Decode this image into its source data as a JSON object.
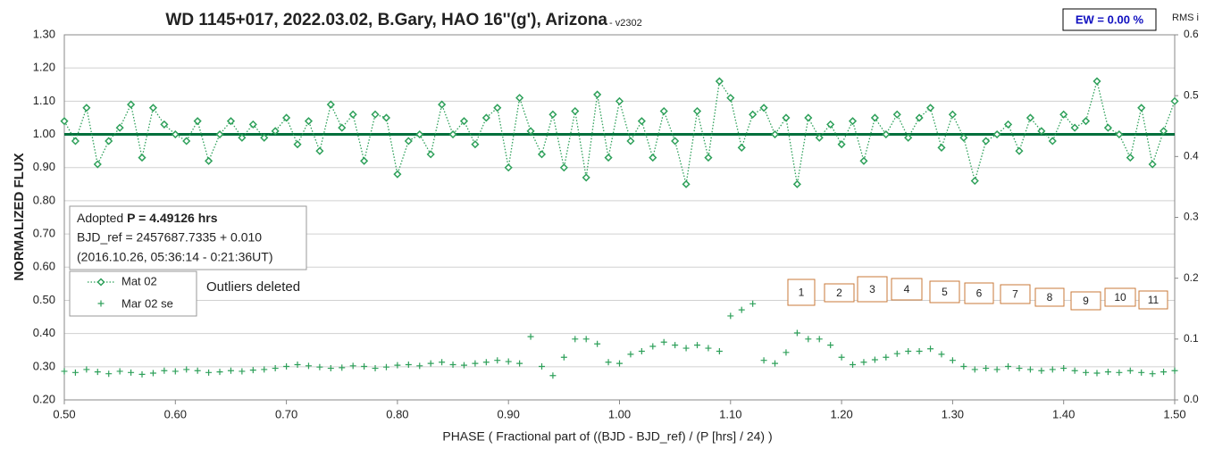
{
  "chart_data": {
    "type": "scatter",
    "title": "WD 1145+017, 2022.03.02, B.Gary, HAO 16''(g'), Arizona",
    "version": " - v2302",
    "ew_label": "EW = 0.00 %",
    "xlabel": "PHASE ( Fractional part of ((BJD - BJD_ref) / (P [hrs] / 24) )",
    "ylabel": "NORMALIZED FLUX",
    "y2label": "RMS i",
    "annotation": "Outliers deleted",
    "info_lines": [
      "Adopted",
      "P = 4.49126 hrs",
      "BJD_ref = 2457687.7335 + 0.010",
      "(2016.10.26, 05:36:14 - 0:21:36UT)"
    ],
    "markers": [
      "1",
      "2",
      "3",
      "4",
      "5",
      "6",
      "7",
      "8",
      "9",
      "10",
      "11"
    ],
    "reference_line": 1.0,
    "reference_color": "#00703c",
    "xlim": [
      0.5,
      1.5
    ],
    "xticks": [
      {
        "value": 0.5,
        "label": "0.50"
      },
      {
        "value": 0.6,
        "label": "0.60"
      },
      {
        "value": 0.7,
        "label": "0.70"
      },
      {
        "value": 0.8,
        "label": "0.80"
      },
      {
        "value": 0.9,
        "label": "0.90"
      },
      {
        "value": 1.0,
        "label": "1.00"
      },
      {
        "value": 1.1,
        "label": "1.10"
      },
      {
        "value": 1.2,
        "label": "1.20"
      },
      {
        "value": 1.3,
        "label": "1.30"
      },
      {
        "value": 1.4,
        "label": "1.40"
      },
      {
        "value": 1.5,
        "label": "1.50"
      }
    ],
    "ylim": [
      0.2,
      1.3
    ],
    "yticks": [
      {
        "value": 0.2,
        "label": "0.20"
      },
      {
        "value": 0.3,
        "label": "0.30"
      },
      {
        "value": 0.4,
        "label": "0.40"
      },
      {
        "value": 0.5,
        "label": "0.50"
      },
      {
        "value": 0.6,
        "label": "0.60"
      },
      {
        "value": 0.7,
        "label": "0.70"
      },
      {
        "value": 0.8,
        "label": "0.80"
      },
      {
        "value": 0.9,
        "label": "0.90"
      },
      {
        "value": 1.0,
        "label": "1.00"
      },
      {
        "value": 1.1,
        "label": "1.10"
      },
      {
        "value": 1.2,
        "label": "1.20"
      },
      {
        "value": 1.3,
        "label": "1.30"
      }
    ],
    "y2lim": [
      0,
      0.6
    ],
    "y2ticks": [
      {
        "value": 0,
        "label": "0.0"
      },
      {
        "value": 0.1,
        "label": "0.1"
      },
      {
        "value": 0.2,
        "label": "0.2"
      },
      {
        "value": 0.3,
        "label": "0.3"
      },
      {
        "value": 0.4,
        "label": "0.4"
      },
      {
        "value": 0.5,
        "label": "0.5"
      },
      {
        "value": 0.6,
        "label": "0.6"
      }
    ],
    "grid": true,
    "x": [
      0.5,
      0.51,
      0.52,
      0.53,
      0.54,
      0.55,
      0.56,
      0.57,
      0.58,
      0.59,
      0.6,
      0.61,
      0.62,
      0.63,
      0.64,
      0.65,
      0.66,
      0.67,
      0.68,
      0.69,
      0.7,
      0.71,
      0.72,
      0.73,
      0.74,
      0.75,
      0.76,
      0.77,
      0.78,
      0.79,
      0.8,
      0.81,
      0.82,
      0.83,
      0.84,
      0.85,
      0.86,
      0.87,
      0.88,
      0.89,
      0.9,
      0.91,
      0.92,
      0.93,
      0.94,
      0.95,
      0.96,
      0.97,
      0.98,
      0.99,
      1.0,
      1.01,
      1.02,
      1.03,
      1.04,
      1.05,
      1.06,
      1.07,
      1.08,
      1.09,
      1.1,
      1.11,
      1.12,
      1.13,
      1.14,
      1.15,
      1.16,
      1.17,
      1.18,
      1.19,
      1.2,
      1.21,
      1.22,
      1.23,
      1.24,
      1.25,
      1.26,
      1.27,
      1.28,
      1.29,
      1.3,
      1.31,
      1.32,
      1.33,
      1.34,
      1.35,
      1.36,
      1.37,
      1.38,
      1.39,
      1.4,
      1.41,
      1.42,
      1.43,
      1.44,
      1.45,
      1.46,
      1.47,
      1.48,
      1.49,
      1.5
    ],
    "series": [
      {
        "name": "Mat 02",
        "color": "#2ea05a",
        "values": [
          1.04,
          0.98,
          1.08,
          0.91,
          0.98,
          1.02,
          1.09,
          0.93,
          1.08,
          1.03,
          1.0,
          0.98,
          1.04,
          0.92,
          1.0,
          1.04,
          0.99,
          1.03,
          0.99,
          1.01,
          1.05,
          0.97,
          1.04,
          0.95,
          1.09,
          1.02,
          1.06,
          0.92,
          1.06,
          1.05,
          0.88,
          0.98,
          1.0,
          0.94,
          1.09,
          1.0,
          1.04,
          0.97,
          1.05,
          1.08,
          0.9,
          1.11,
          1.01,
          0.94,
          1.06,
          0.9,
          1.07,
          0.87,
          1.12,
          0.93,
          1.1,
          0.98,
          1.04,
          0.93,
          1.07,
          0.98,
          0.85,
          1.07,
          0.93,
          1.16,
          1.11,
          0.96,
          1.06,
          1.08,
          1.0,
          1.05,
          0.85,
          1.05,
          0.99,
          1.03,
          0.97,
          1.04,
          0.92,
          1.05,
          1.0,
          1.06,
          0.99,
          1.05,
          1.08,
          0.96,
          1.06,
          0.99,
          0.86,
          0.98,
          1.0,
          1.03,
          0.95,
          1.05,
          1.01,
          0.98,
          1.06,
          1.02,
          1.04,
          1.16,
          1.02,
          1.0,
          0.93,
          1.08,
          0.91,
          1.01,
          1.1
        ]
      },
      {
        "name": "Mar 02 se",
        "color": "#2ea05a",
        "axis": "y2",
        "values": [
          0.047,
          0.045,
          0.05,
          0.046,
          0.043,
          0.047,
          0.045,
          0.042,
          0.044,
          0.048,
          0.047,
          0.05,
          0.048,
          0.045,
          0.046,
          0.048,
          0.047,
          0.049,
          0.05,
          0.052,
          0.055,
          0.058,
          0.056,
          0.054,
          0.052,
          0.053,
          0.056,
          0.055,
          0.052,
          0.054,
          0.057,
          0.058,
          0.056,
          0.06,
          0.062,
          0.058,
          0.057,
          0.06,
          0.062,
          0.065,
          0.063,
          0.06,
          0.104,
          0.055,
          0.04,
          0.07,
          0.1,
          0.1,
          0.092,
          0.062,
          0.06,
          0.075,
          0.08,
          0.088,
          0.095,
          0.09,
          0.085,
          0.09,
          0.085,
          0.08,
          0.138,
          0.148,
          0.158,
          0.065,
          0.06,
          0.078,
          0.11,
          0.1,
          0.1,
          0.09,
          0.07,
          0.058,
          0.062,
          0.066,
          0.07,
          0.076,
          0.08,
          0.08,
          0.084,
          0.075,
          0.065,
          0.055,
          0.05,
          0.052,
          0.05,
          0.055,
          0.052,
          0.05,
          0.048,
          0.05,
          0.052,
          0.048,
          0.045,
          0.044,
          0.046,
          0.045,
          0.048,
          0.045,
          0.043,
          0.046,
          0.048
        ]
      }
    ]
  }
}
